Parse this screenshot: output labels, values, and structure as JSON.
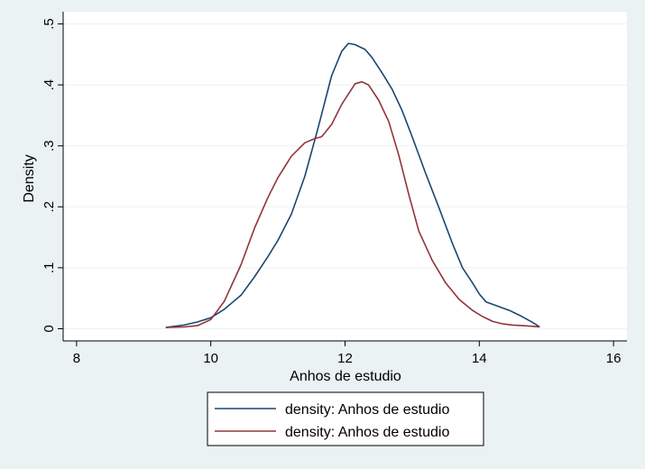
{
  "chart_data": {
    "type": "line",
    "title": "",
    "xlabel": "Anhos de estudio",
    "ylabel": "Density",
    "xlim": [
      7.8,
      16.2
    ],
    "ylim": [
      -0.02,
      0.52
    ],
    "x_ticks": [
      8,
      10,
      12,
      14,
      16
    ],
    "x_tick_labels": [
      "8",
      "10",
      "12",
      "14",
      "16"
    ],
    "y_ticks": [
      0,
      0.1,
      0.2,
      0.3,
      0.4,
      0.5
    ],
    "y_tick_labels": [
      "0",
      ".1",
      ".2",
      ".3",
      ".4",
      ".5"
    ],
    "grid": "horizontal",
    "legend_position": "bottom",
    "series": [
      {
        "name": "density: Anhos de estudio",
        "color": "#1a476f",
        "x": [
          9.33,
          9.6,
          9.8,
          10.0,
          10.2,
          10.45,
          10.65,
          10.85,
          11.0,
          11.2,
          11.4,
          11.6,
          11.8,
          11.95,
          12.05,
          12.15,
          12.3,
          12.4,
          12.55,
          12.7,
          12.85,
          13.0,
          13.2,
          13.4,
          13.6,
          13.75,
          13.9,
          14.0,
          14.1,
          14.3,
          14.45,
          14.6,
          14.8,
          14.9
        ],
        "y": [
          0.002,
          0.006,
          0.011,
          0.018,
          0.032,
          0.055,
          0.085,
          0.118,
          0.145,
          0.188,
          0.25,
          0.33,
          0.415,
          0.455,
          0.468,
          0.466,
          0.458,
          0.445,
          0.42,
          0.393,
          0.358,
          0.315,
          0.255,
          0.198,
          0.14,
          0.1,
          0.075,
          0.057,
          0.044,
          0.036,
          0.03,
          0.022,
          0.01,
          0.003
        ]
      },
      {
        "name": "density: Anhos de estudio",
        "color": "#90353b",
        "x": [
          9.33,
          9.6,
          9.8,
          10.0,
          10.2,
          10.45,
          10.65,
          10.85,
          11.0,
          11.2,
          11.4,
          11.55,
          11.65,
          11.8,
          11.95,
          12.05,
          12.15,
          12.25,
          12.35,
          12.5,
          12.65,
          12.8,
          12.95,
          13.1,
          13.3,
          13.5,
          13.7,
          13.9,
          14.05,
          14.2,
          14.35,
          14.5,
          14.65,
          14.8,
          14.9
        ],
        "y": [
          0.002,
          0.003,
          0.005,
          0.015,
          0.045,
          0.105,
          0.165,
          0.215,
          0.248,
          0.283,
          0.305,
          0.312,
          0.315,
          0.335,
          0.368,
          0.385,
          0.402,
          0.405,
          0.4,
          0.375,
          0.34,
          0.285,
          0.22,
          0.16,
          0.112,
          0.075,
          0.048,
          0.03,
          0.02,
          0.012,
          0.008,
          0.006,
          0.005,
          0.004,
          0.003
        ]
      }
    ]
  }
}
